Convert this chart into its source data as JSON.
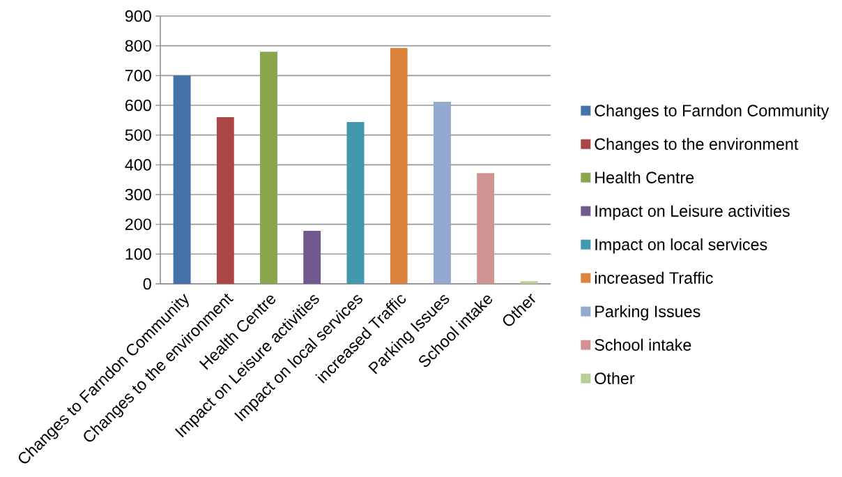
{
  "chart_data": {
    "type": "bar",
    "categories": [
      "Changes to Farndon Community",
      "Changes to the environment",
      "Health Centre",
      "Impact on Leisure activities",
      "Impact on local services",
      "increased Traffic",
      "Parking Issues",
      "School intake",
      "Other"
    ],
    "series": [
      {
        "name": "Changes to Farndon Community",
        "color": "#4572a7",
        "values": [
          700,
          null,
          null,
          null,
          null,
          null,
          null,
          null,
          null
        ]
      },
      {
        "name": "Changes to the environment",
        "color": "#aa4643",
        "values": [
          null,
          560,
          null,
          null,
          null,
          null,
          null,
          null,
          null
        ]
      },
      {
        "name": "Health Centre",
        "color": "#89a54e",
        "values": [
          null,
          null,
          780,
          null,
          null,
          null,
          null,
          null,
          null
        ]
      },
      {
        "name": "Impact on Leisure activities",
        "color": "#71588f",
        "values": [
          null,
          null,
          null,
          178,
          null,
          null,
          null,
          null,
          null
        ]
      },
      {
        "name": "Impact on local services",
        "color": "#4198af",
        "values": [
          null,
          null,
          null,
          null,
          544,
          null,
          null,
          null,
          null
        ]
      },
      {
        "name": "increased Traffic",
        "color": "#db843d",
        "values": [
          null,
          null,
          null,
          null,
          null,
          793,
          null,
          null,
          null
        ]
      },
      {
        "name": "Parking Issues",
        "color": "#93a9cf",
        "values": [
          null,
          null,
          null,
          null,
          null,
          null,
          612,
          null,
          null
        ]
      },
      {
        "name": "School intake",
        "color": "#d19392",
        "values": [
          null,
          null,
          null,
          null,
          null,
          null,
          null,
          372,
          null
        ]
      },
      {
        "name": "Other",
        "color": "#b9cd96",
        "values": [
          null,
          null,
          null,
          null,
          null,
          null,
          null,
          null,
          9
        ]
      }
    ],
    "ylim": [
      0,
      900
    ],
    "yticks": [
      0,
      100,
      200,
      300,
      400,
      500,
      600,
      700,
      800,
      900
    ],
    "grid": "y",
    "legend": "right"
  }
}
